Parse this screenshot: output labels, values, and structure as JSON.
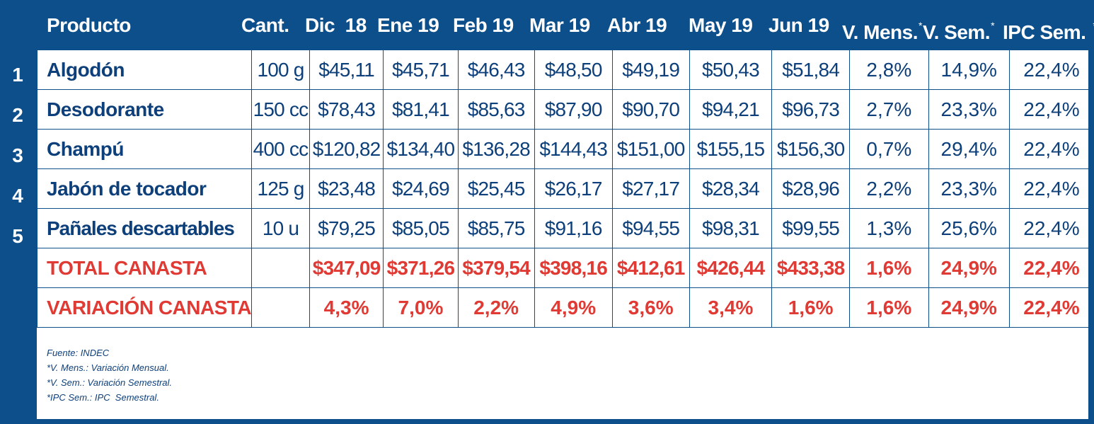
{
  "chart_data": {
    "type": "table",
    "title": "",
    "columns": [
      "Producto",
      "Cant.",
      "Dic  18",
      "Ene 19",
      "Feb 19",
      "Mar 19",
      "Abr 19",
      "May 19",
      "Jun 19",
      "V. Mens.",
      "V. Sem.",
      "IPC Sem."
    ],
    "column_footnote_marks": [
      "",
      "",
      "",
      "",
      "",
      "",
      "",
      "",
      "",
      "*",
      "*",
      "*"
    ],
    "rows": [
      {
        "num": "1",
        "product": "Algodón",
        "qty": "100 g",
        "values": [
          "$45,11",
          "$45,71",
          "$46,43",
          "$48,50",
          "$49,19",
          "$50,43",
          "$51,84"
        ],
        "v_mens": "2,8%",
        "v_sem": "14,9%",
        "ipc_sem": "22,4%"
      },
      {
        "num": "2",
        "product": "Desodorante",
        "qty": "150 cc",
        "values": [
          "$78,43",
          "$81,41",
          "$85,63",
          "$87,90",
          "$90,70",
          "$94,21",
          "$96,73"
        ],
        "v_mens": "2,7%",
        "v_sem": "23,3%",
        "ipc_sem": "22,4%"
      },
      {
        "num": "3",
        "product": "Champú",
        "qty": "400 cc",
        "values": [
          "$120,82",
          "$134,40",
          "$136,28",
          "$144,43",
          "$151,00",
          "$155,15",
          "$156,30"
        ],
        "v_mens": "0,7%",
        "v_sem": "29,4%",
        "ipc_sem": "22,4%"
      },
      {
        "num": "4",
        "product": "Jabón de tocador",
        "qty": "125 g",
        "values": [
          "$23,48",
          "$24,69",
          "$25,45",
          "$26,17",
          "$27,17",
          "$28,34",
          "$28,96"
        ],
        "v_mens": "2,2%",
        "v_sem": "23,3%",
        "ipc_sem": "22,4%"
      },
      {
        "num": "5",
        "product": "Pañales descartables",
        "qty": "10 u",
        "values": [
          "$79,25",
          "$85,05",
          "$85,75",
          "$91,16",
          "$94,55",
          "$98,31",
          "$99,55"
        ],
        "v_mens": "1,3%",
        "v_sem": "25,6%",
        "ipc_sem": "22,4%"
      }
    ],
    "summary_rows": [
      {
        "label": "TOTAL CANASTA",
        "qty": "",
        "values": [
          "$347,09",
          "$371,26",
          "$379,54",
          "$398,16",
          "$412,61",
          "$426,44",
          "$433,38"
        ],
        "v_mens": "1,6%",
        "v_sem": "24,9%",
        "ipc_sem": "22,4%"
      },
      {
        "label": "VARIACIÓN CANASTA",
        "qty": "",
        "values": [
          "4,3%",
          "7,0%",
          "2,2%",
          "4,9%",
          "3,6%",
          "3,4%",
          "1,6%"
        ],
        "v_mens": "1,6%",
        "v_sem": "24,9%",
        "ipc_sem": "22,4%"
      }
    ],
    "footnotes": [
      "Fuente: INDEC",
      "*V. Mens.: Variación Mensual.",
      "*V. Sem.: Variación Semestral.",
      "*IPC Sem.: IPC  Semestral."
    ]
  },
  "colors": {
    "frame_blue": "#0d4f8b",
    "text_blue": "#0d3f7a",
    "highlight_red": "#e03a35",
    "background": "#ffffff"
  }
}
